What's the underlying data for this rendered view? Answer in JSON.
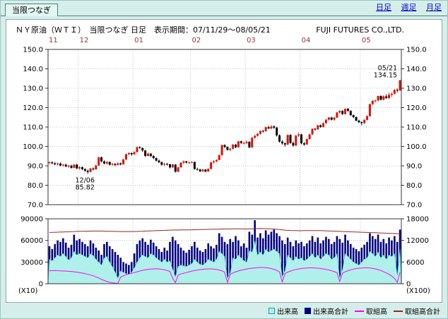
{
  "header": {
    "tab_label": "当限つなぎ",
    "nav_links": [
      {
        "label": "日足"
      },
      {
        "label": "週足"
      },
      {
        "label": "月足"
      }
    ]
  },
  "panel": {
    "title": "ＮＹ原油（ＷＴＩ）　当限つなぎ 日足　表示期間：07/11/29～08/05/21",
    "company": "FUJI FUTURES CO.,LTD."
  },
  "legend": [
    {
      "label": "出来高",
      "swatch": "square",
      "color": "#b0f0ea",
      "border": "#12a0a0"
    },
    {
      "label": "出来高合計",
      "swatch": "square",
      "color": "#000080",
      "border": "#000080"
    },
    {
      "label": "取組高",
      "swatch": "line",
      "color": "#ff00ff"
    },
    {
      "label": "取組高合計",
      "swatch": "line",
      "color": "#992222"
    }
  ],
  "chart_data": {
    "type": "candlestick",
    "title": "ＮＹ原油（ＷＴＩ） 当限つなぎ 日足",
    "period": "07/11/29～08/05/21",
    "price_axis": {
      "min": 70,
      "max": 150,
      "tick_step": 10,
      "tick_labels": [
        "150.0",
        "140.0",
        "130.0",
        "120.0",
        "110.0",
        "100.0",
        "90.0",
        "80.0",
        "70.0"
      ]
    },
    "month_labels": [
      "11",
      "12",
      "01",
      "02",
      "03",
      "04",
      "05"
    ],
    "month_start_indices": [
      0,
      11,
      31,
      52,
      72,
      92,
      114
    ],
    "annotations": [
      {
        "index": 14,
        "price": 85.82,
        "lines": [
          "12/06",
          "85.82"
        ],
        "position": "below"
      },
      {
        "index": 128,
        "price": 134.15,
        "lines": [
          "05/21",
          "134.15"
        ],
        "position": "above"
      }
    ],
    "colors": {
      "up": "#dd1100",
      "down": "#000000",
      "volume_total": "#000080",
      "volume_front": "#b0f0ea",
      "volume_front_edge": "#18b2b2",
      "oi_front": "#ff00ff",
      "oi_total": "#992222",
      "grid": "#a8b4b4",
      "axis": "#333333",
      "month_label": "#993333"
    },
    "candles_ohlc": [
      [
        91.5,
        92.3,
        90.8,
        91.8
      ],
      [
        91.8,
        92.4,
        90.9,
        91.3
      ],
      [
        91.3,
        92.0,
        90.4,
        90.8
      ],
      [
        90.8,
        91.6,
        90.2,
        91.2
      ],
      [
        91.2,
        91.8,
        89.8,
        90.2
      ],
      [
        90.2,
        91.0,
        89.5,
        90.6
      ],
      [
        90.6,
        91.2,
        89.3,
        89.7
      ],
      [
        89.7,
        90.5,
        89.0,
        90.1
      ],
      [
        90.1,
        90.6,
        88.6,
        89.0
      ],
      [
        89.0,
        90.9,
        88.7,
        90.6
      ],
      [
        90.6,
        91.0,
        88.3,
        88.7
      ],
      [
        88.7,
        89.9,
        88.0,
        89.3
      ],
      [
        89.3,
        89.7,
        87.8,
        88.3
      ],
      [
        88.3,
        88.8,
        86.9,
        87.5
      ],
      [
        87.5,
        88.1,
        85.82,
        86.9
      ],
      [
        86.9,
        89.0,
        86.6,
        88.6
      ],
      [
        88.6,
        89.2,
        87.7,
        88.2
      ],
      [
        88.2,
        90.6,
        88.0,
        90.2
      ],
      [
        90.2,
        94.7,
        90.0,
        94.4
      ],
      [
        94.4,
        94.8,
        91.9,
        92.3
      ],
      [
        92.3,
        92.8,
        90.8,
        91.2
      ],
      [
        91.2,
        92.4,
        90.7,
        92.0
      ],
      [
        92.0,
        92.3,
        90.2,
        90.6
      ],
      [
        90.6,
        91.6,
        90.1,
        91.0
      ],
      [
        91.0,
        91.4,
        89.8,
        90.5
      ],
      [
        90.5,
        91.8,
        90.2,
        91.3
      ],
      [
        91.3,
        91.7,
        90.3,
        90.8
      ],
      [
        90.8,
        93.6,
        90.6,
        93.3
      ],
      [
        93.3,
        96.3,
        93.0,
        96.0
      ],
      [
        96.0,
        97.0,
        95.5,
        96.6
      ],
      [
        96.6,
        96.9,
        95.2,
        96.0
      ],
      [
        96.0,
        97.5,
        95.6,
        97.1
      ],
      [
        97.1,
        100.0,
        96.8,
        99.6
      ],
      [
        99.6,
        100.1,
        98.8,
        99.2
      ],
      [
        99.2,
        99.5,
        97.2,
        97.9
      ],
      [
        97.9,
        98.2,
        94.6,
        95.1
      ],
      [
        95.1,
        96.8,
        94.9,
        96.3
      ],
      [
        96.3,
        96.6,
        94.4,
        95.1
      ],
      [
        95.1,
        95.6,
        93.5,
        94.0
      ],
      [
        94.0,
        94.3,
        92.2,
        92.7
      ],
      [
        92.7,
        93.3,
        91.4,
        91.9
      ],
      [
        91.9,
        92.2,
        90.1,
        90.6
      ],
      [
        90.6,
        91.6,
        89.9,
        91.0
      ],
      [
        91.0,
        91.5,
        90.2,
        90.8
      ],
      [
        90.8,
        91.1,
        88.7,
        89.2
      ],
      [
        89.2,
        91.0,
        88.9,
        90.7
      ],
      [
        90.7,
        90.9,
        86.5,
        87.0
      ],
      [
        87.0,
        89.5,
        86.7,
        89.2
      ],
      [
        89.2,
        91.9,
        89.0,
        91.6
      ],
      [
        91.6,
        92.8,
        91.0,
        92.3
      ],
      [
        92.3,
        92.6,
        91.2,
        91.7
      ],
      [
        91.7,
        92.3,
        91.1,
        91.7
      ],
      [
        91.7,
        92.4,
        91.3,
        92.0
      ],
      [
        92.0,
        92.2,
        88.0,
        88.4
      ],
      [
        88.4,
        89.1,
        87.6,
        88.1
      ],
      [
        88.1,
        88.5,
        86.8,
        87.2
      ],
      [
        87.2,
        88.4,
        86.9,
        88.1
      ],
      [
        88.1,
        88.3,
        86.6,
        87.1
      ],
      [
        87.1,
        88.8,
        86.9,
        88.4
      ],
      [
        88.4,
        92.1,
        88.2,
        91.8
      ],
      [
        91.8,
        92.9,
        91.2,
        92.3
      ],
      [
        92.3,
        93.4,
        91.9,
        93.0
      ],
      [
        93.0,
        95.9,
        92.8,
        95.5
      ],
      [
        95.5,
        100.9,
        95.3,
        100.7
      ],
      [
        100.7,
        101.1,
        99.2,
        99.7
      ],
      [
        99.7,
        100.0,
        97.8,
        98.2
      ],
      [
        98.2,
        99.2,
        97.6,
        98.8
      ],
      [
        98.8,
        101.2,
        98.5,
        100.9
      ],
      [
        100.9,
        101.3,
        99.1,
        99.6
      ],
      [
        99.6,
        102.9,
        99.4,
        102.6
      ],
      [
        102.6,
        103.1,
        101.3,
        101.8
      ],
      [
        101.8,
        102.4,
        101.0,
        101.8
      ],
      [
        101.8,
        103.1,
        101.2,
        102.4
      ],
      [
        102.4,
        102.7,
        99.1,
        99.5
      ],
      [
        99.5,
        104.8,
        99.3,
        104.5
      ],
      [
        104.5,
        105.9,
        103.9,
        105.5
      ],
      [
        105.5,
        106.9,
        105.0,
        106.5
      ],
      [
        106.5,
        108.3,
        106.1,
        108.0
      ],
      [
        108.0,
        108.5,
        107.1,
        107.9
      ],
      [
        107.9,
        110.2,
        107.5,
        109.9
      ],
      [
        109.9,
        110.7,
        108.9,
        109.3
      ],
      [
        109.3,
        111.0,
        108.8,
        110.3
      ],
      [
        110.3,
        110.9,
        109.0,
        109.7
      ],
      [
        109.7,
        110.1,
        105.1,
        105.7
      ],
      [
        105.7,
        106.2,
        102.0,
        102.5
      ],
      [
        102.5,
        103.3,
        100.9,
        101.6
      ],
      [
        101.6,
        102.1,
        99.9,
        101.0
      ],
      [
        101.0,
        106.2,
        100.7,
        105.9
      ],
      [
        105.9,
        106.3,
        101.4,
        101.8
      ],
      [
        101.8,
        102.5,
        99.9,
        100.5
      ],
      [
        100.5,
        105.9,
        100.2,
        105.6
      ],
      [
        105.6,
        107.1,
        104.9,
        106.2
      ],
      [
        106.2,
        106.5,
        101.1,
        101.6
      ],
      [
        101.6,
        102.3,
        100.4,
        101.0
      ],
      [
        101.0,
        104.1,
        100.8,
        103.8
      ],
      [
        103.8,
        106.5,
        103.5,
        106.2
      ],
      [
        106.2,
        109.3,
        105.9,
        109.1
      ],
      [
        109.1,
        109.5,
        108.2,
        108.8
      ],
      [
        108.8,
        111.2,
        108.5,
        110.9
      ],
      [
        110.9,
        111.3,
        109.6,
        110.1
      ],
      [
        110.1,
        112.3,
        109.8,
        112.0
      ],
      [
        112.0,
        114.1,
        111.7,
        113.8
      ],
      [
        113.8,
        115.2,
        113.3,
        114.9
      ],
      [
        114.9,
        115.3,
        113.4,
        113.8
      ],
      [
        113.8,
        115.2,
        113.2,
        114.9
      ],
      [
        114.9,
        117.8,
        114.6,
        117.5
      ],
      [
        117.5,
        118.6,
        116.9,
        118.3
      ],
      [
        118.3,
        118.7,
        116.2,
        116.7
      ],
      [
        116.7,
        119.6,
        116.4,
        119.4
      ],
      [
        119.4,
        119.8,
        117.9,
        118.3
      ],
      [
        118.3,
        118.7,
        115.7,
        116.1
      ],
      [
        116.1,
        116.5,
        114.6,
        115.1
      ],
      [
        115.1,
        115.5,
        112.9,
        113.3
      ],
      [
        113.3,
        113.8,
        112.0,
        112.5
      ],
      [
        112.5,
        113.0,
        110.8,
        112.0
      ],
      [
        112.0,
        114.0,
        111.7,
        113.7
      ],
      [
        113.7,
        116.0,
        113.4,
        115.6
      ],
      [
        115.6,
        122.0,
        115.3,
        121.8
      ],
      [
        121.8,
        123.9,
        121.3,
        123.5
      ],
      [
        123.5,
        124.1,
        122.6,
        123.7
      ],
      [
        123.7,
        126.2,
        123.2,
        126.0
      ],
      [
        126.0,
        126.4,
        123.6,
        124.1
      ],
      [
        124.1,
        126.4,
        123.7,
        125.8
      ],
      [
        125.8,
        126.9,
        124.5,
        124.9
      ],
      [
        124.9,
        127.8,
        124.5,
        126.6
      ],
      [
        126.6,
        127.9,
        125.5,
        127.1
      ],
      [
        127.1,
        129.6,
        126.8,
        129.1
      ],
      [
        129.1,
        129.9,
        127.8,
        128.9
      ],
      [
        128.9,
        134.15,
        128.5,
        134.15
      ]
    ],
    "volume_pane": {
      "left_axis": {
        "label": "(X10)",
        "max": 90000,
        "tick_labels": [
          "90000",
          "60000",
          "30000",
          "0"
        ]
      },
      "right_axis": {
        "label": "(X100)",
        "max": 18000,
        "tick_labels": [
          "18000",
          "12000",
          "6000",
          "0"
        ]
      },
      "volume_total": [
        52000,
        48000,
        55000,
        60000,
        58000,
        63000,
        57000,
        50000,
        54000,
        68000,
        60000,
        62000,
        58000,
        55000,
        52000,
        60000,
        56000,
        50000,
        46000,
        40000,
        55000,
        58000,
        52000,
        48000,
        44000,
        40000,
        36000,
        30000,
        28000,
        26000,
        30000,
        42000,
        55000,
        60000,
        63000,
        58000,
        54000,
        61000,
        57000,
        52000,
        48000,
        44000,
        50000,
        46000,
        58000,
        65000,
        60000,
        55000,
        50000,
        46000,
        43000,
        47000,
        52000,
        58000,
        50000,
        46000,
        44000,
        48000,
        56000,
        52000,
        49000,
        54000,
        70000,
        65000,
        58000,
        55000,
        62000,
        58000,
        66000,
        60000,
        52000,
        56000,
        50000,
        72000,
        68000,
        88000,
        64000,
        70000,
        63000,
        74000,
        68000,
        72000,
        75000,
        70000,
        66000,
        60000,
        55000,
        64000,
        58000,
        52000,
        60000,
        56000,
        58000,
        52000,
        56000,
        60000,
        66000,
        58000,
        64000,
        56000,
        60000,
        65000,
        62000,
        55000,
        58000,
        66000,
        62000,
        57000,
        68000,
        60000,
        55000,
        50000,
        48000,
        45000,
        50000,
        54000,
        58000,
        70000,
        66000,
        62000,
        68000,
        58000,
        62000,
        56000,
        64000,
        60000,
        66000,
        58000,
        75000
      ],
      "volume_front": [
        34000,
        32000,
        36000,
        40000,
        38000,
        42000,
        38000,
        33000,
        36000,
        45000,
        40000,
        42000,
        40000,
        38000,
        36000,
        42000,
        39000,
        34000,
        30000,
        26000,
        36000,
        38000,
        30000,
        24000,
        16000,
        8000,
        18000,
        16000,
        14000,
        13000,
        16000,
        22000,
        30000,
        36000,
        40000,
        38000,
        36000,
        42000,
        40000,
        36000,
        33000,
        30000,
        34000,
        30000,
        32000,
        20000,
        10000,
        24000,
        26000,
        25000,
        24000,
        26000,
        28000,
        34000,
        30000,
        27000,
        26000,
        29000,
        34000,
        32000,
        30000,
        34000,
        45000,
        42000,
        38000,
        8000,
        15000,
        36000,
        34000,
        40000,
        36000,
        32000,
        30000,
        46000,
        44000,
        60000,
        40000,
        44000,
        40000,
        48000,
        44000,
        46000,
        48000,
        45000,
        42000,
        10000,
        18000,
        40000,
        36000,
        32000,
        38000,
        34000,
        36000,
        32000,
        34000,
        38000,
        42000,
        36000,
        40000,
        34000,
        38000,
        42000,
        40000,
        34000,
        36000,
        42000,
        8000,
        20000,
        42000,
        38000,
        34000,
        30000,
        28000,
        26000,
        30000,
        34000,
        36000,
        45000,
        42000,
        38000,
        44000,
        36000,
        40000,
        34000,
        40000,
        38000,
        42000,
        12000,
        48000
      ],
      "oi_front": [
        3600,
        3620,
        3650,
        3600,
        3580,
        3550,
        3500,
        3450,
        3400,
        3300,
        3200,
        3100,
        2950,
        2800,
        2600,
        2400,
        2200,
        1900,
        1600,
        1200,
        900,
        600,
        400,
        250,
        150,
        100,
        1800,
        2200,
        2500,
        2700,
        2900,
        3100,
        3300,
        3500,
        3700,
        3850,
        3950,
        4050,
        4100,
        4150,
        4100,
        4000,
        3850,
        3650,
        3400,
        1500,
        300,
        2400,
        2700,
        2900,
        3100,
        3300,
        3500,
        3650,
        3800,
        3900,
        4000,
        4050,
        4100,
        4100,
        4050,
        3950,
        3800,
        3550,
        3200,
        400,
        2600,
        3000,
        3300,
        3550,
        3750,
        3900,
        4050,
        4200,
        4300,
        4400,
        4450,
        4500,
        4500,
        4450,
        4350,
        4200,
        4000,
        3700,
        3300,
        500,
        2800,
        3200,
        3500,
        3750,
        3950,
        4100,
        4200,
        4300,
        4350,
        4400,
        4400,
        4350,
        4300,
        4200,
        4100,
        3950,
        3800,
        3600,
        3350,
        3050,
        600,
        2900,
        3300,
        3600,
        3850,
        4050,
        4200,
        4300,
        4350,
        4400,
        4400,
        4350,
        4250,
        4100,
        3900,
        3650,
        3350,
        3000,
        2600,
        2100,
        1500,
        400,
        3200
      ],
      "oi_total": [
        14200,
        14230,
        14260,
        14290,
        14320,
        14350,
        14380,
        14400,
        14430,
        14460,
        14490,
        14510,
        14530,
        14550,
        14570,
        14580,
        14590,
        14600,
        14600,
        14590,
        14580,
        14560,
        14540,
        14520,
        14500,
        14480,
        14470,
        14460,
        14450,
        14450,
        14460,
        14480,
        14500,
        14530,
        14560,
        14590,
        14620,
        14650,
        14680,
        14710,
        14740,
        14770,
        14800,
        14830,
        14850,
        14870,
        14880,
        14890,
        14900,
        14910,
        14920,
        14930,
        14940,
        14960,
        14980,
        15000,
        15020,
        15040,
        15060,
        15080,
        15100,
        15120,
        15140,
        15160,
        15170,
        15180,
        15190,
        15200,
        15210,
        15210,
        15200,
        15190,
        15180,
        15200,
        15230,
        15260,
        15280,
        15300,
        15290,
        15270,
        15240,
        15200,
        15150,
        15080,
        15000,
        14920,
        14850,
        14800,
        14760,
        14730,
        14710,
        14700,
        14700,
        14710,
        14720,
        14730,
        14740,
        14740,
        14730,
        14710,
        14690,
        14660,
        14630,
        14600,
        14570,
        14540,
        14510,
        14480,
        14450,
        14420,
        14390,
        14360,
        14330,
        14300,
        14270,
        14240,
        14210,
        14180,
        14150,
        14120,
        14090,
        14060,
        14030,
        14000,
        13970,
        13940,
        13910,
        13880,
        13850
      ]
    }
  }
}
